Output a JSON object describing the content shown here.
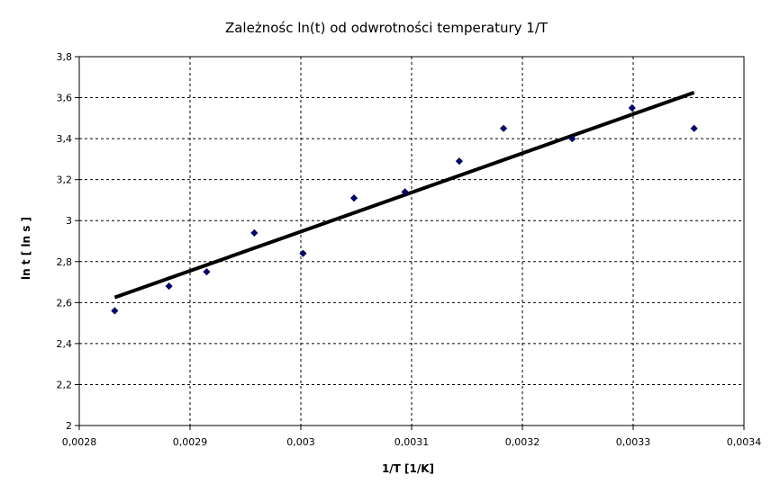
{
  "chart_data": {
    "type": "scatter",
    "title": "Zależnośc ln(t) od odwrotności temperatury 1/T",
    "xlabel": "1/T [1/K]",
    "ylabel": "ln t [ ln s ]",
    "xlim": [
      0.0028,
      0.0034
    ],
    "ylim": [
      2,
      3.8
    ],
    "x_ticks": [
      "0,0028",
      "0,0029",
      "0,003",
      "0,0031",
      "0,0032",
      "0,0033",
      "0,0034"
    ],
    "y_ticks": [
      "2",
      "2,2",
      "2,4",
      "2,6",
      "2,8",
      "3",
      "3,2",
      "3,4",
      "3,6",
      "3,8"
    ],
    "x_tick_values": [
      0.0028,
      0.0029,
      0.003,
      0.0031,
      0.0032,
      0.0033,
      0.0034
    ],
    "y_tick_values": [
      2,
      2.2,
      2.4,
      2.6,
      2.8,
      3,
      3.2,
      3.4,
      3.6,
      3.8
    ],
    "grid": true,
    "legend": "none",
    "series": [
      {
        "x": [
          0.002832,
          0.002881,
          0.002915,
          0.002958,
          0.003002,
          0.003048,
          0.003094,
          0.003143,
          0.003183,
          0.003245,
          0.003299,
          0.003355
        ],
        "y": [
          2.56,
          2.68,
          2.75,
          2.94,
          2.84,
          3.11,
          3.14,
          3.29,
          3.45,
          3.4,
          3.55,
          3.45
        ],
        "color": "#00007a",
        "marker": "diamond"
      }
    ],
    "trendline": {
      "type": "linear",
      "x": [
        0.002832,
        0.003355
      ],
      "y": [
        2.625,
        3.625
      ],
      "color": "#000000"
    }
  }
}
